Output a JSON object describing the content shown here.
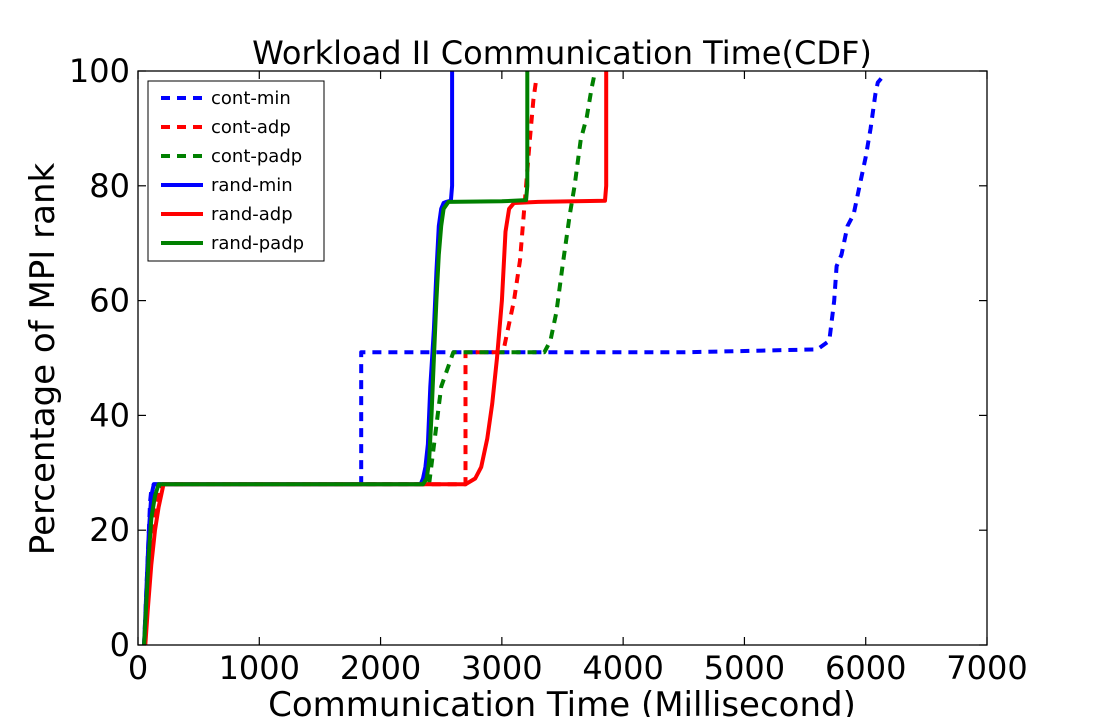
{
  "chart_data": {
    "type": "line",
    "title": "Workload II Communication Time(CDF)",
    "xlabel": "Communication Time (Millisecond)",
    "ylabel": "Percentage of MPI rank",
    "xlim": [
      0,
      7000
    ],
    "ylim": [
      0,
      100
    ],
    "xticks": [
      "0",
      "1000",
      "2000",
      "3000",
      "4000",
      "5000",
      "6000",
      "7000"
    ],
    "yticks": [
      "0",
      "20",
      "40",
      "60",
      "80",
      "100"
    ],
    "grid": false,
    "legend_position": "top-left",
    "series": [
      {
        "name": "cont-min",
        "color": "#0000ff",
        "style": "dashed",
        "x": [
          50,
          70,
          90,
          100,
          110,
          130,
          200,
          1000,
          1840,
          1840,
          1860,
          3000,
          4500,
          5600,
          5700,
          5740,
          5760,
          5800,
          5850,
          5900,
          5950,
          6000,
          6040,
          6080,
          6100,
          6140
        ],
        "y": [
          0,
          10,
          20,
          25,
          27,
          28,
          28,
          28,
          28,
          51,
          51,
          51,
          51,
          51.5,
          53,
          60,
          66,
          68,
          73,
          75,
          80,
          85,
          90,
          96,
          98,
          99
        ]
      },
      {
        "name": "cont-adp",
        "color": "#ff0000",
        "style": "dashed",
        "x": [
          50,
          80,
          110,
          140,
          170,
          200,
          1000,
          2000,
          2700,
          2700,
          2710,
          2980,
          3020,
          3050,
          3100,
          3150,
          3200,
          3230,
          3260,
          3280,
          3300
        ],
        "y": [
          0,
          10,
          18,
          24,
          27,
          28,
          28,
          28,
          28,
          51,
          51,
          51,
          52,
          55,
          60,
          67,
          80,
          88,
          95,
          98,
          99
        ]
      },
      {
        "name": "cont-padp",
        "color": "#008000",
        "style": "dashed",
        "x": [
          50,
          80,
          100,
          120,
          150,
          200,
          1000,
          2000,
          2400,
          2500,
          2600,
          3000,
          3350,
          3400,
          3450,
          3500,
          3560,
          3600,
          3650,
          3700,
          3740,
          3760
        ],
        "y": [
          0,
          12,
          20,
          25,
          27,
          28,
          28,
          28,
          28,
          45,
          51,
          51,
          51,
          53,
          58,
          66,
          75,
          80,
          88,
          92,
          97,
          99
        ]
      },
      {
        "name": "rand-min",
        "color": "#0000ff",
        "style": "solid",
        "x": [
          50,
          70,
          90,
          110,
          130,
          200,
          1000,
          2000,
          2330,
          2350,
          2370,
          2390,
          2410,
          2440,
          2460,
          2480,
          2500,
          2520,
          2540,
          2580,
          2590,
          2590
        ],
        "y": [
          0,
          10,
          20,
          26,
          28,
          28,
          28,
          28,
          28,
          29,
          31,
          35,
          45,
          55,
          65,
          73,
          76,
          77,
          77.2,
          77.4,
          80,
          100
        ]
      },
      {
        "name": "rand-adp",
        "color": "#ff0000",
        "style": "solid",
        "x": [
          60,
          80,
          110,
          140,
          170,
          210,
          1000,
          2000,
          2400,
          2700,
          2780,
          2830,
          2880,
          2920,
          2960,
          3000,
          3030,
          3060,
          3100,
          3300,
          3600,
          3850,
          3860,
          3860
        ],
        "y": [
          0,
          6,
          14,
          20,
          24,
          28,
          28,
          28,
          28,
          28,
          29,
          31,
          36,
          42,
          50,
          60,
          72,
          76,
          77,
          77.2,
          77.3,
          77.4,
          80,
          100
        ]
      },
      {
        "name": "rand-padp",
        "color": "#008000",
        "style": "solid",
        "x": [
          50,
          70,
          90,
          110,
          140,
          170,
          1000,
          2000,
          2350,
          2380,
          2400,
          2420,
          2440,
          2460,
          2480,
          2500,
          2520,
          2560,
          3000,
          3200,
          3210,
          3210
        ],
        "y": [
          0,
          8,
          16,
          22,
          26,
          28,
          28,
          28,
          28,
          29,
          32,
          40,
          50,
          60,
          68,
          73,
          76,
          77.2,
          77.3,
          77.5,
          80,
          100
        ]
      }
    ]
  }
}
